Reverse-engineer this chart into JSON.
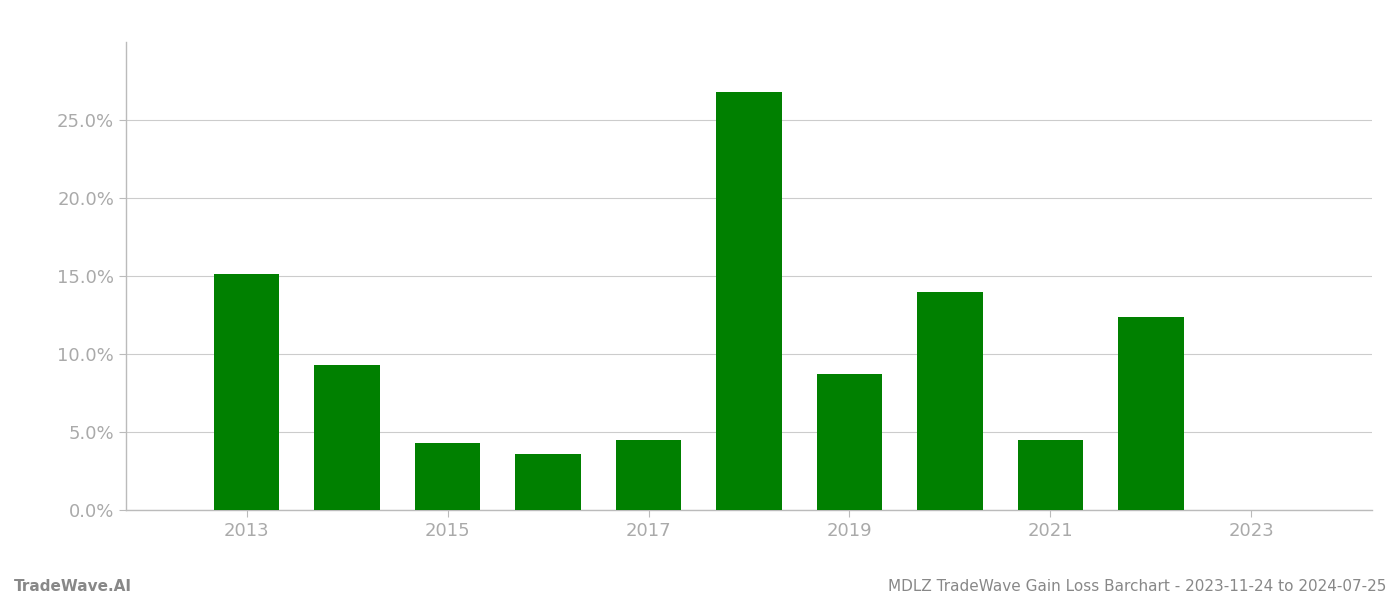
{
  "years": [
    2013,
    2014,
    2015,
    2016,
    2017,
    2018,
    2019,
    2020,
    2021,
    2022,
    2023
  ],
  "values": [
    0.151,
    0.093,
    0.043,
    0.036,
    0.045,
    0.268,
    0.087,
    0.14,
    0.045,
    0.124,
    0.0
  ],
  "bar_color": "#008000",
  "background_color": "#ffffff",
  "grid_color": "#cccccc",
  "ylim": [
    0,
    0.3
  ],
  "yticks": [
    0.0,
    0.05,
    0.1,
    0.15,
    0.2,
    0.25
  ],
  "xtick_labels": [
    "2013",
    "2015",
    "2017",
    "2019",
    "2021",
    "2023"
  ],
  "xtick_positions": [
    2013,
    2015,
    2017,
    2019,
    2021,
    2023
  ],
  "footer_left": "TradeWave.AI",
  "footer_right": "MDLZ TradeWave Gain Loss Barchart - 2023-11-24 to 2024-07-25",
  "tick_label_color": "#aaaaaa",
  "footer_color": "#888888",
  "bar_width": 0.65
}
